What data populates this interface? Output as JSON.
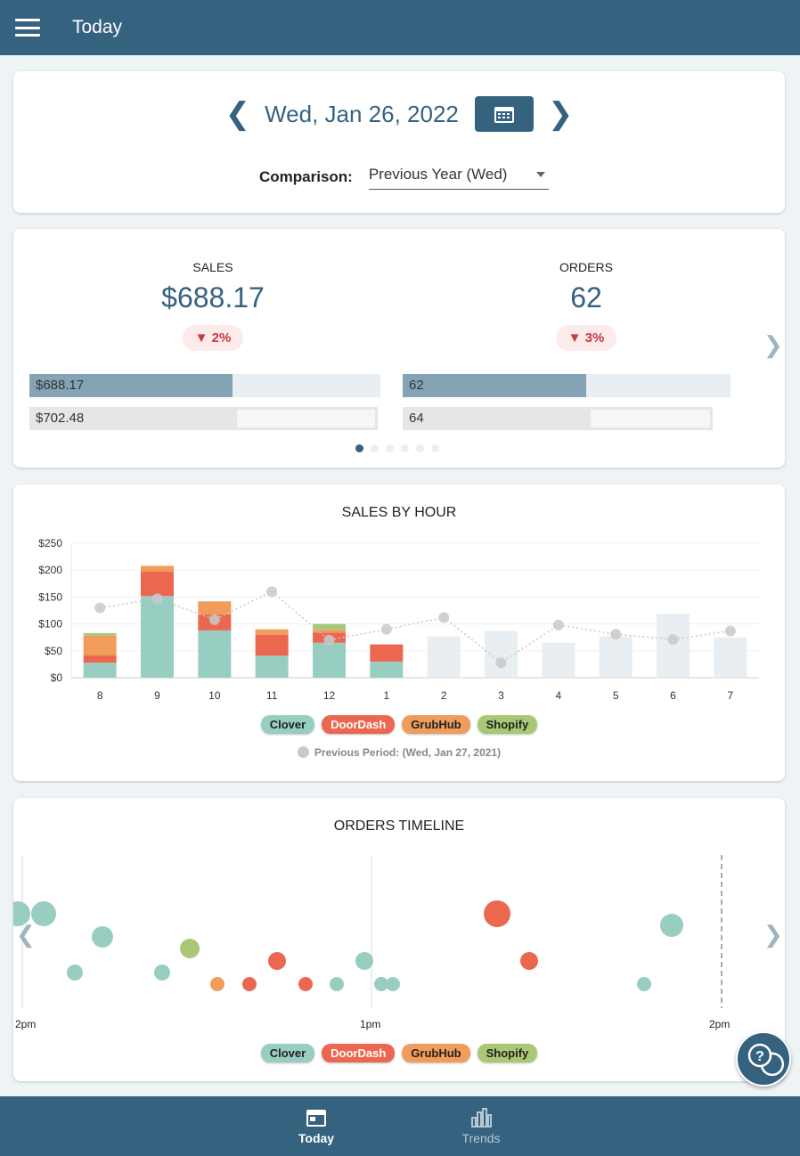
{
  "header": {
    "title": "Today",
    "menu_icon": "hamburger-icon"
  },
  "date_picker": {
    "date": "Wed, Jan 26, 2022",
    "comparison_label": "Comparison:",
    "comparison_value": "Previous Year (Wed)"
  },
  "metrics": [
    {
      "label": "SALES",
      "value": "$688.17",
      "change": "2%",
      "direction": "down",
      "current": "$688.17",
      "previous": "$702.48"
    },
    {
      "label": "ORDERS",
      "value": "62",
      "change": "3%",
      "direction": "down",
      "current": "62",
      "previous": "64"
    }
  ],
  "colors": {
    "primary": "#35627f",
    "Clover": "#98cdc1",
    "DoorDash": "#ec6750",
    "GrubHub": "#f09c5a",
    "Shopify": "#a9c876",
    "future": "#e8eef2",
    "previous": "#c9c9c9"
  },
  "sales_chart": {
    "title": "SALES BY HOUR",
    "legend": [
      "Clover",
      "DoorDash",
      "GrubHub",
      "Shopify"
    ],
    "previous_label": "Previous Period: (Wed, Jan 27, 2021)"
  },
  "chart_data": {
    "type": "bar",
    "title": "SALES BY HOUR",
    "categories": [
      "8",
      "9",
      "10",
      "11",
      "12",
      "1",
      "2",
      "3",
      "4",
      "5",
      "6",
      "7"
    ],
    "ylim": [
      0,
      250
    ],
    "yticks": [
      "$0",
      "$50",
      "$100",
      "$150",
      "$200",
      "$250"
    ],
    "grid": true,
    "legend_placement": "bottom",
    "series": [
      {
        "name": "Clover",
        "values": [
          28,
          152,
          88,
          41,
          65,
          30,
          null,
          null,
          null,
          null,
          null,
          null
        ]
      },
      {
        "name": "DoorDash",
        "values": [
          14,
          45,
          30,
          39,
          19,
          32,
          null,
          null,
          null,
          null,
          null,
          null
        ]
      },
      {
        "name": "GrubHub",
        "values": [
          36,
          11,
          24,
          10,
          5,
          0,
          null,
          null,
          null,
          null,
          null,
          null
        ]
      },
      {
        "name": "Shopify",
        "values": [
          5,
          0,
          0,
          0,
          11,
          0,
          null,
          null,
          null,
          null,
          null,
          null
        ]
      },
      {
        "name": "Previous Period: (Wed, Jan 27, 2021)",
        "type": "line",
        "values": [
          130,
          147,
          108,
          160,
          70,
          90,
          112,
          28,
          98,
          81,
          71,
          87
        ]
      }
    ],
    "forecast_values": [
      null,
      null,
      null,
      null,
      null,
      null,
      77,
      87,
      65,
      77,
      119,
      75
    ]
  },
  "timeline": {
    "title": "ORDERS TIMELINE",
    "axis_labels": [
      "2pm",
      "1pm",
      "2pm"
    ],
    "legend": [
      "Clover",
      "DoorDash",
      "GrubHub",
      "Shopify"
    ]
  },
  "bottom_nav": [
    {
      "label": "Today",
      "icon": "calendar-icon",
      "active": true
    },
    {
      "label": "Trends",
      "icon": "bar-chart-icon",
      "active": false
    }
  ]
}
